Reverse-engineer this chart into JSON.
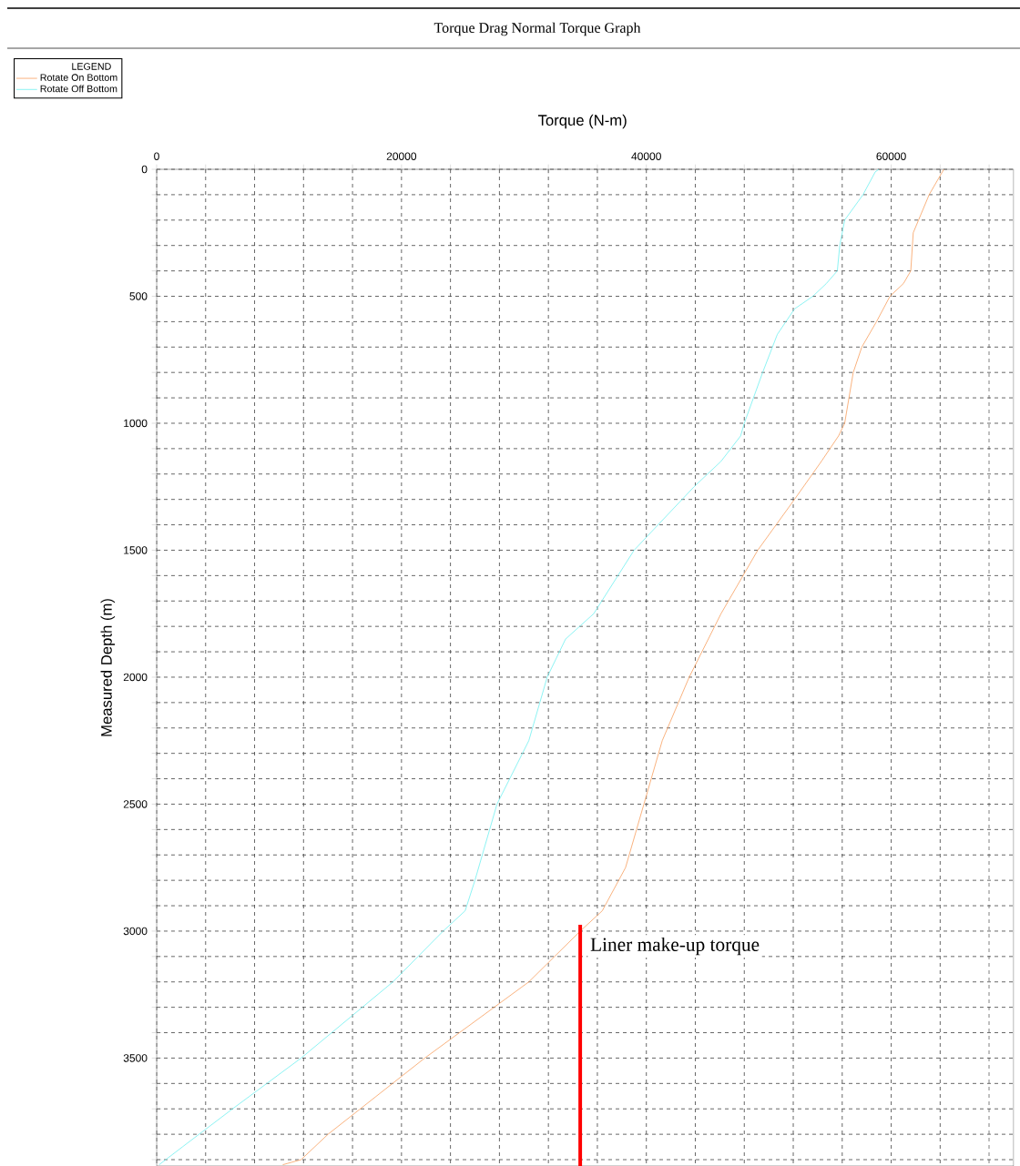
{
  "chart_data": {
    "type": "line",
    "title": "Torque Drag Normal Torque Graph",
    "xlabel": "Torque (N-m)",
    "ylabel": "Measured Depth (m)",
    "legend_title": "LEGEND",
    "xlim": [
      0,
      70000
    ],
    "ylim": [
      3925,
      0
    ],
    "xticks": [
      0,
      {
        "value": 4000,
        "label": null
      },
      {
        "value": 8000,
        "label": null
      },
      {
        "value": 12000,
        "label": null
      },
      {
        "value": 16000,
        "label": null
      },
      20000,
      {
        "value": 24000,
        "label": null
      },
      {
        "value": 28000,
        "label": null
      },
      {
        "value": 32000,
        "label": null
      },
      {
        "value": 36000,
        "label": null
      },
      40000,
      {
        "value": 44000,
        "label": null
      },
      {
        "value": 48000,
        "label": null
      },
      {
        "value": 52000,
        "label": null
      },
      {
        "value": 56000,
        "label": null
      },
      60000,
      {
        "value": 64000,
        "label": null
      },
      {
        "value": 68000,
        "label": null
      }
    ],
    "yticks": [
      0,
      {
        "value": 100,
        "label": null
      },
      {
        "value": 200,
        "label": null
      },
      {
        "value": 300,
        "label": null
      },
      {
        "value": 400,
        "label": null
      },
      500,
      {
        "value": 600,
        "label": null
      },
      {
        "value": 700,
        "label": null
      },
      {
        "value": 800,
        "label": null
      },
      {
        "value": 900,
        "label": null
      },
      1000,
      {
        "value": 1100,
        "label": null
      },
      {
        "value": 1200,
        "label": null
      },
      {
        "value": 1300,
        "label": null
      },
      {
        "value": 1400,
        "label": null
      },
      1500,
      {
        "value": 1600,
        "label": null
      },
      {
        "value": 1700,
        "label": null
      },
      {
        "value": 1800,
        "label": null
      },
      {
        "value": 1900,
        "label": null
      },
      2000,
      {
        "value": 2100,
        "label": null
      },
      {
        "value": 2200,
        "label": null
      },
      {
        "value": 2300,
        "label": null
      },
      {
        "value": 2400,
        "label": null
      },
      2500,
      {
        "value": 2600,
        "label": null
      },
      {
        "value": 2700,
        "label": null
      },
      {
        "value": 2800,
        "label": null
      },
      {
        "value": 2900,
        "label": null
      },
      3000,
      {
        "value": 3100,
        "label": null
      },
      {
        "value": 3200,
        "label": null
      },
      {
        "value": 3300,
        "label": null
      },
      {
        "value": 3400,
        "label": null
      },
      3500,
      {
        "value": 3600,
        "label": null
      },
      {
        "value": 3700,
        "label": null
      },
      {
        "value": 3800,
        "label": null
      },
      {
        "value": 3900,
        "label": null
      }
    ],
    "grid": true,
    "legend": "top left",
    "marker": "none",
    "line_style": "solid",
    "series": [
      {
        "name": "Rotate On Bottom",
        "color": "#f8a060",
        "x": [
          64300,
          63100,
          61800,
          61600,
          61000,
          59900,
          58800,
          57600,
          56900,
          56200,
          55700,
          54300,
          52100,
          49100,
          46100,
          43500,
          41300,
          39800,
          38300,
          36400,
          34600,
          30400,
          21900,
          14000,
          11800,
          10300
        ],
        "values": [
          0,
          100,
          250,
          400,
          450,
          500,
          600,
          700,
          800,
          1000,
          1050,
          1150,
          1300,
          1500,
          1750,
          2000,
          2250,
          2500,
          2750,
          2920,
          3000,
          3200,
          3500,
          3800,
          3900,
          3920
        ]
      },
      {
        "name": "Rotate Off Bottom",
        "color": "#70f0f0",
        "x": [
          59000,
          58700,
          57700,
          56200,
          55800,
          55600,
          54700,
          53600,
          52100,
          50700,
          49500,
          48000,
          47700,
          46100,
          43900,
          39000,
          35700,
          33400,
          31900,
          30400,
          27800,
          26000,
          25200,
          23400,
          19300,
          11800,
          6200,
          2100,
          200
        ],
        "values": [
          0,
          10,
          100,
          200,
          300,
          400,
          450,
          500,
          550,
          650,
          800,
          1000,
          1050,
          1150,
          1250,
          1500,
          1750,
          1850,
          2000,
          2250,
          2500,
          2800,
          2920,
          3000,
          3200,
          3500,
          3700,
          3850,
          3920
        ]
      },
      {
        "color": "#ff0000",
        "x": [
          34600,
          34600
        ],
        "values": [
          2975,
          3925
        ]
      }
    ],
    "annotations": [
      {
        "text": "Liner make-up torque",
        "x": 34600,
        "y": 3000
      }
    ]
  }
}
